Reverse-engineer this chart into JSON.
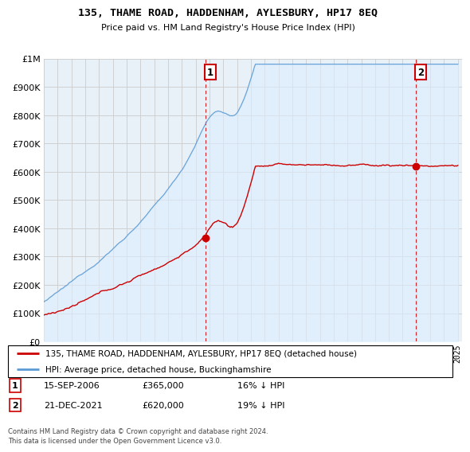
{
  "title": "135, THAME ROAD, HADDENHAM, AYLESBURY, HP17 8EQ",
  "subtitle": "Price paid vs. HM Land Registry's House Price Index (HPI)",
  "legend_entry1": "135, THAME ROAD, HADDENHAM, AYLESBURY, HP17 8EQ (detached house)",
  "legend_entry2": "HPI: Average price, detached house, Buckinghamshire",
  "annotation1_date": "15-SEP-2006",
  "annotation1_price": 365000,
  "annotation1_hpi": "16% ↓ HPI",
  "annotation2_date": "21-DEC-2021",
  "annotation2_price": 620000,
  "annotation2_hpi": "19% ↓ HPI",
  "footer": "Contains HM Land Registry data © Crown copyright and database right 2024.\nThis data is licensed under the Open Government Licence v3.0.",
  "red_color": "#cc0000",
  "blue_color": "#5b9bd5",
  "fill_color": "#ddeeff",
  "grid_color": "#cccccc",
  "background_color": "#ffffff",
  "plot_bg_color": "#e8f0f8",
  "ylim_max": 1000000,
  "sale1_year": 2006.708,
  "sale1_price": 365000,
  "sale2_year": 2021.958,
  "sale2_price": 620000
}
